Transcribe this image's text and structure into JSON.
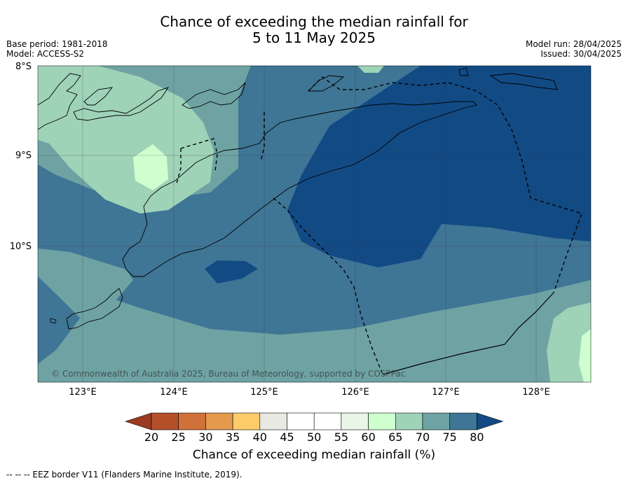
{
  "title_line1": "Chance of exceeding the median rainfall for",
  "title_line2": "5 to 11 May 2025",
  "base_period": "Base period: 1981-2018",
  "model": "Model: ACCESS-S2",
  "model_run": "Model run: 28/04/2025",
  "issued": "Issued: 30/04/2025",
  "lat_labels": [
    "8°S",
    "9°S",
    "10°S"
  ],
  "lon_labels": [
    "123°E",
    "124°E",
    "125°E",
    "126°E",
    "127°E",
    "128°E"
  ],
  "copyright": "© Commonwealth of Australia 2025, Bureau of Meteorology, supported by COSPPac",
  "colorbar": {
    "ticks": [
      "20",
      "25",
      "30",
      "35",
      "40",
      "45",
      "50",
      "55",
      "60",
      "65",
      "70",
      "75",
      "80"
    ],
    "colors": [
      "#9a3b22",
      "#b5502a",
      "#d0703a",
      "#e39a4d",
      "#fecb6a",
      "#e9e9e3",
      "#ffffff",
      "#ffffff",
      "#e9f5e6",
      "#cfffcf",
      "#9fd3b8",
      "#6fa3a3",
      "#3f7595",
      "#124a84"
    ],
    "label": "Chance of exceeding median rainfall (%)"
  },
  "footnote": "--  --  -- EEZ border V11 (Flanders Marine Institute, 2019)."
}
